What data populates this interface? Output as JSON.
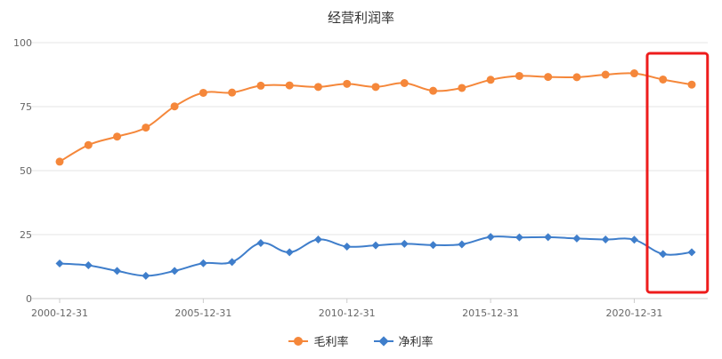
{
  "chart_data": {
    "type": "line",
    "title": "经营利润率",
    "xlabel": "",
    "ylabel": "",
    "ylim": [
      0,
      100
    ],
    "yticks": [
      0,
      25,
      50,
      75,
      100
    ],
    "xticks": [
      "2000-12-31",
      "2005-12-31",
      "2010-12-31",
      "2015-12-31",
      "2020-12-31"
    ],
    "x": [
      "2000-12-31",
      "2001-12-31",
      "2002-12-31",
      "2003-12-31",
      "2004-12-31",
      "2005-12-31",
      "2006-12-31",
      "2007-12-31",
      "2008-12-31",
      "2009-12-31",
      "2010-12-31",
      "2011-12-31",
      "2012-12-31",
      "2013-12-31",
      "2014-12-31",
      "2015-12-31",
      "2016-12-31",
      "2017-12-31",
      "2018-12-31",
      "2019-12-31",
      "2020-12-31",
      "2021-12-31",
      "2022-12-31"
    ],
    "series": [
      {
        "name": "毛利率",
        "color": "#f5873a",
        "marker": "circle",
        "values": [
          53.5,
          60,
          63.3,
          66.8,
          75.1,
          80.4,
          80.5,
          83.2,
          83.3,
          82.7,
          83.9,
          82.7,
          84.2,
          81.2,
          82.3,
          85.5,
          87,
          86.6,
          86.5,
          87.5,
          88,
          85.6,
          83.6
        ]
      },
      {
        "name": "净利率",
        "color": "#3f7ecb",
        "marker": "diamond",
        "values": [
          13.7,
          13,
          10.8,
          8.9,
          10.8,
          13.8,
          14.3,
          21.7,
          18.1,
          23.1,
          20.3,
          20.8,
          21.4,
          20.9,
          21.2,
          24.1,
          23.9,
          24,
          23.5,
          23.1,
          23,
          17.4,
          18.1
        ]
      }
    ],
    "grid": true,
    "legend_position": "bottom-center",
    "highlight_box": {
      "color": "#ee1c1c",
      "covers": [
        "2021-12-31",
        "2022-12-31"
      ]
    }
  }
}
